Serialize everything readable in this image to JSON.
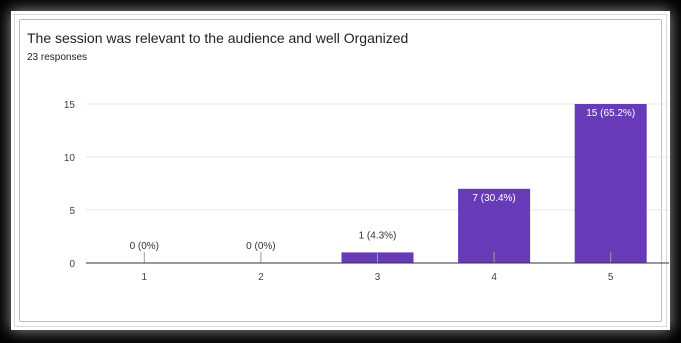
{
  "chart_data": {
    "type": "bar",
    "title": "The session was relevant to the audience and well Organized",
    "subtitle": "23 responses",
    "categories": [
      "1",
      "2",
      "3",
      "4",
      "5"
    ],
    "values": [
      0,
      0,
      1,
      7,
      15
    ],
    "data_labels": [
      "0 (0%)",
      "0 (0%)",
      "1 (4.3%)",
      "7 (30.4%)",
      "15 (65.2%)"
    ],
    "ylim": [
      0,
      15
    ],
    "yticks": [
      "0",
      "5",
      "10",
      "15"
    ],
    "xlabel": "",
    "ylabel": "",
    "grid": true,
    "colors": {
      "bar": "#673ab7",
      "grid": "#e6e6e6",
      "axis": "#333333"
    }
  }
}
